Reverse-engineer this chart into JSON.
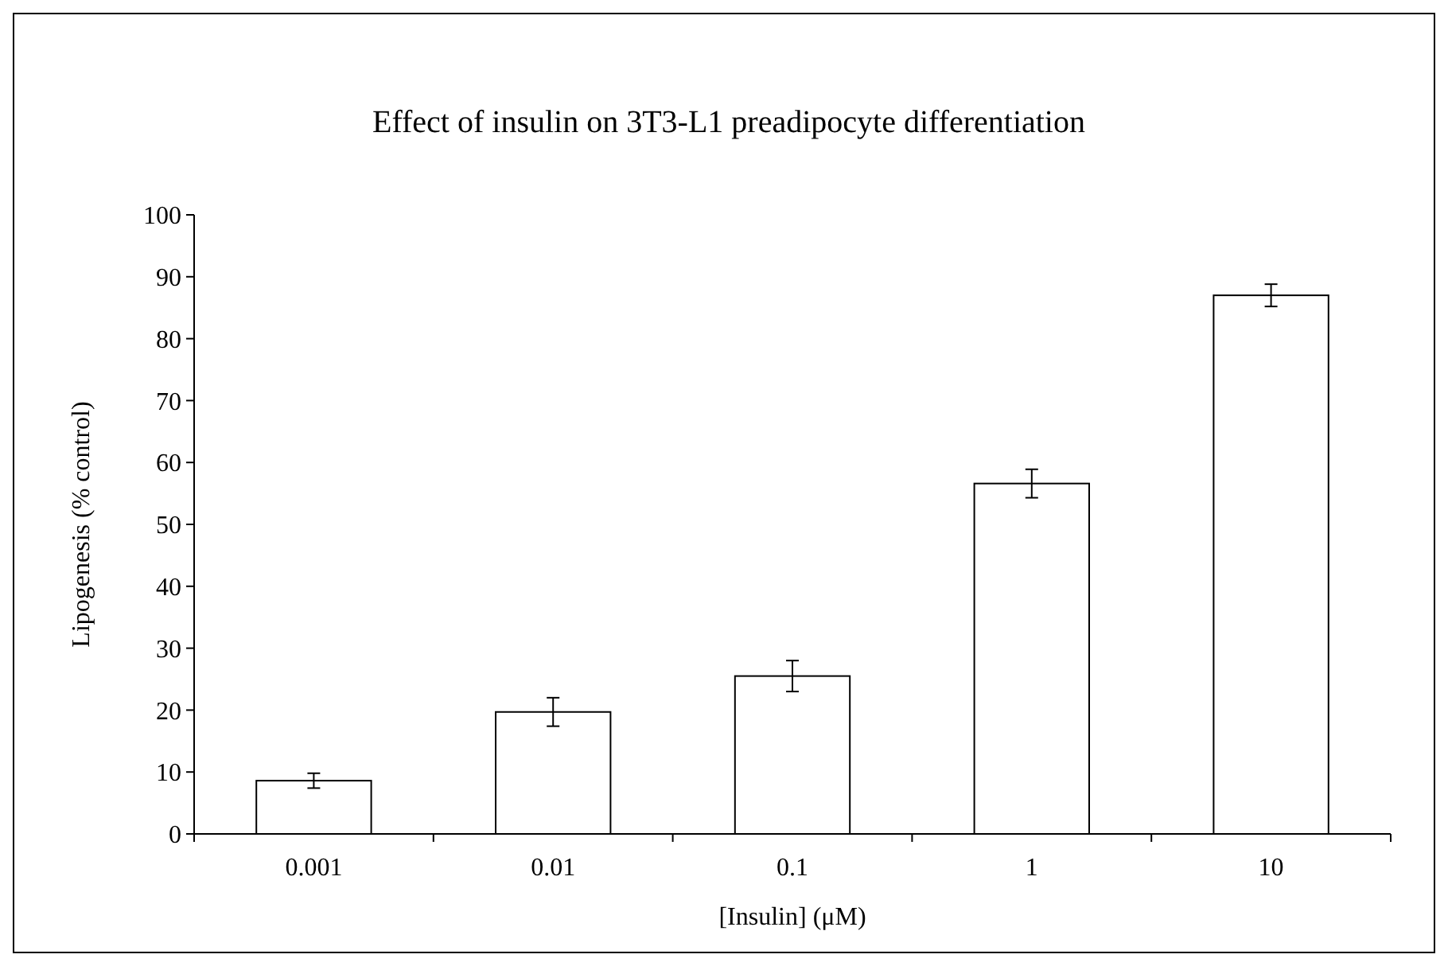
{
  "chart_data": {
    "type": "bar",
    "title": "Effect of insulin on 3T3-L1 preadipocyte differentiation",
    "xlabel": "[Insulin] (μM)",
    "ylabel": "Lipogenesis (% control)",
    "categories": [
      "0.001",
      "0.01",
      "0.1",
      "1",
      "10"
    ],
    "values": [
      8.6,
      19.7,
      25.5,
      56.6,
      87
    ],
    "errors": [
      1.2,
      2.3,
      2.5,
      2.3,
      1.8
    ],
    "color": "#ffffff",
    "ylim": [
      0,
      100
    ],
    "yticks": [
      0,
      10,
      20,
      30,
      40,
      50,
      60,
      70,
      80,
      90,
      100
    ],
    "grid": false
  }
}
